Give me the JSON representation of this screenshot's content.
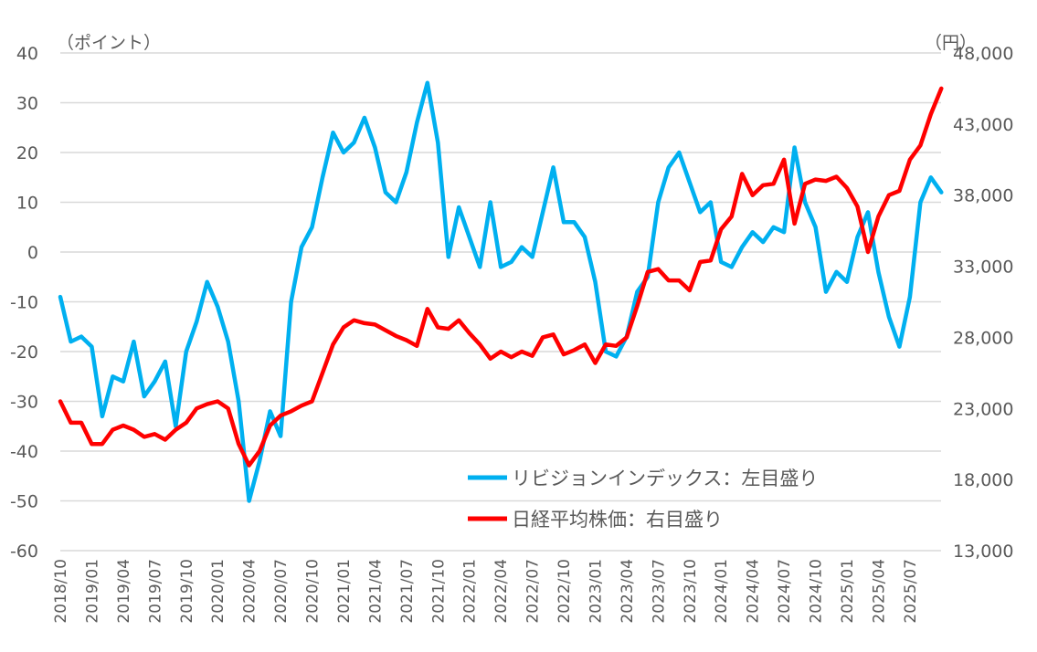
{
  "chart_data": {
    "type": "line",
    "title": "",
    "left_unit": "（ポイント）",
    "right_unit": "（円）",
    "left_ylim": [
      -60,
      40
    ],
    "left_ticks": [
      "40",
      "30",
      "20",
      "10",
      "0",
      "-10",
      "-20",
      "-30",
      "-40",
      "-50",
      "-60"
    ],
    "right_ylim": [
      13000,
      48000
    ],
    "right_ticks": [
      "48,000",
      "43,000",
      "38,000",
      "33,000",
      "28,000",
      "23,000",
      "18,000",
      "13,000"
    ],
    "x_tick_labels": [
      "2018/10",
      "2019/01",
      "2019/04",
      "2019/07",
      "2019/10",
      "2020/01",
      "2020/04",
      "2020/07",
      "2020/10",
      "2021/01",
      "2021/04",
      "2021/07",
      "2021/10",
      "2022/01",
      "2022/04",
      "2022/07",
      "2022/10",
      "2023/01",
      "2023/04",
      "2023/07",
      "2023/10",
      "2024/01",
      "2024/04",
      "2024/07",
      "2024/10",
      "2025/01",
      "2025/04",
      "2025/07"
    ],
    "x_start": "2018/10",
    "x_step": "month",
    "grid": true,
    "legend_position": "bottom-right",
    "series": [
      {
        "name": "リビジョンインデックス：左目盛り",
        "axis": "left",
        "color": "#00B0F0",
        "values": [
          -9,
          -18,
          -17,
          -19,
          -33,
          -25,
          -26,
          -18,
          -29,
          -26,
          -22,
          -35,
          -20,
          -14,
          -6,
          -11,
          -18,
          -30,
          -50,
          -42,
          -32,
          -37,
          -10,
          1,
          5,
          15,
          24,
          20,
          22,
          27,
          21,
          12,
          10,
          16,
          26,
          34,
          22,
          -1,
          9,
          3,
          -3,
          10,
          -3,
          -2,
          1,
          -1,
          8,
          17,
          6,
          6,
          3,
          -6,
          -20,
          -21,
          -17,
          -8,
          -5,
          10,
          17,
          20,
          14,
          8,
          10,
          -2,
          -3,
          1,
          4,
          2,
          5,
          4,
          21,
          10,
          5,
          -8,
          -4,
          -6,
          3,
          8,
          -4,
          -13,
          -19,
          -9,
          10,
          15,
          12
        ]
      },
      {
        "name": "日経平均株価：右目盛り",
        "axis": "right",
        "color": "#FF0000",
        "values": [
          23500,
          22000,
          22000,
          20500,
          20500,
          21500,
          21800,
          21500,
          21000,
          21200,
          20800,
          21500,
          22000,
          23000,
          23300,
          23500,
          23000,
          20500,
          19000,
          20000,
          21800,
          22500,
          22800,
          23200,
          23500,
          25500,
          27500,
          28700,
          29200,
          29000,
          28900,
          28500,
          28100,
          27800,
          27400,
          30000,
          28700,
          28600,
          29200,
          28300,
          27500,
          26500,
          27000,
          26600,
          27000,
          26700,
          28000,
          28200,
          26800,
          27100,
          27500,
          26200,
          27500,
          27400,
          28000,
          30200,
          32600,
          32800,
          32000,
          32000,
          31300,
          33300,
          33400,
          35600,
          36500,
          39500,
          38000,
          38700,
          38800,
          40500,
          36000,
          38800,
          39100,
          39000,
          39300,
          38500,
          37200,
          34000,
          36500,
          38000,
          38300,
          40500,
          41500,
          43700,
          45500
        ]
      }
    ]
  }
}
